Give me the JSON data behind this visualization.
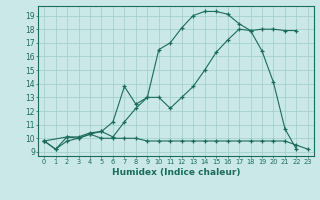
{
  "xlabel": "Humidex (Indice chaleur)",
  "bg_color": "#cbe8e8",
  "grid_color": "#9ecece",
  "line_color": "#1a6b5a",
  "xlim": [
    -0.5,
    23.5
  ],
  "ylim": [
    8.7,
    19.7
  ],
  "xticks": [
    0,
    1,
    2,
    3,
    4,
    5,
    6,
    7,
    8,
    9,
    10,
    11,
    12,
    13,
    14,
    15,
    16,
    17,
    18,
    19,
    20,
    21,
    22,
    23
  ],
  "yticks": [
    9,
    10,
    11,
    12,
    13,
    14,
    15,
    16,
    17,
    18,
    19
  ],
  "line_top_x": [
    0,
    2,
    3,
    4,
    5,
    6,
    7,
    8,
    9,
    10,
    11,
    12,
    13,
    14,
    15,
    16,
    17,
    18,
    19,
    20,
    21,
    22
  ],
  "line_top_y": [
    9.8,
    10.1,
    10.0,
    10.3,
    10.5,
    11.2,
    13.8,
    12.5,
    13.0,
    16.5,
    17.0,
    18.1,
    19.0,
    19.3,
    19.3,
    19.1,
    18.4,
    17.9,
    18.0,
    18.0,
    17.9,
    17.9
  ],
  "line_mid_x": [
    0,
    1,
    2,
    3,
    4,
    5,
    6,
    7,
    8,
    9,
    10,
    11,
    12,
    13,
    14,
    15,
    16,
    17,
    18,
    19,
    20,
    21,
    22
  ],
  "line_mid_y": [
    9.8,
    9.2,
    10.1,
    10.1,
    10.4,
    10.5,
    10.1,
    11.2,
    12.2,
    13.0,
    13.0,
    12.2,
    13.0,
    13.8,
    15.0,
    16.3,
    17.2,
    18.0,
    17.9,
    16.4,
    14.1,
    10.7,
    9.2
  ],
  "line_bot_x": [
    0,
    1,
    2,
    3,
    4,
    5,
    6,
    7,
    8,
    9,
    10,
    11,
    12,
    13,
    14,
    15,
    16,
    17,
    18,
    19,
    20,
    21,
    22,
    23
  ],
  "line_bot_y": [
    9.8,
    9.2,
    9.8,
    10.0,
    10.3,
    10.0,
    10.0,
    10.0,
    10.0,
    9.8,
    9.8,
    9.8,
    9.8,
    9.8,
    9.8,
    9.8,
    9.8,
    9.8,
    9.8,
    9.8,
    9.8,
    9.8,
    9.5,
    9.2
  ]
}
